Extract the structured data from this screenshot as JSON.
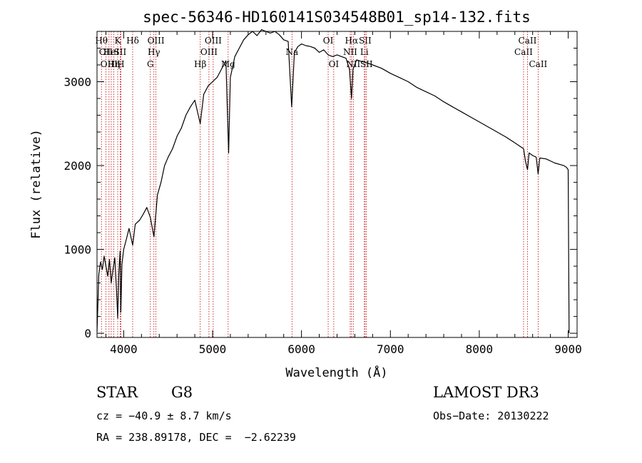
{
  "chart_data": {
    "type": "line",
    "title": "spec-56346-HD160141S034548B01_sp14-132.fits",
    "xlabel": "Wavelength (Å)",
    "ylabel": "Flux (relative)",
    "xlim": [
      3700,
      9100
    ],
    "ylim": [
      -50,
      3600
    ],
    "x_ticks": [
      {
        "value": 4000,
        "label": "4000"
      },
      {
        "value": 5000,
        "label": "5000"
      },
      {
        "value": 6000,
        "label": "6000"
      },
      {
        "value": 7000,
        "label": "7000"
      },
      {
        "value": 8000,
        "label": "8000"
      },
      {
        "value": 9000,
        "label": "9000"
      }
    ],
    "y_ticks": [
      {
        "value": 0,
        "label": "0"
      },
      {
        "value": 1000,
        "label": "1000"
      },
      {
        "value": 2000,
        "label": "2000"
      },
      {
        "value": 3000,
        "label": "3000"
      }
    ],
    "series": [
      {
        "name": "spectrum",
        "points": [
          [
            3700,
            20
          ],
          [
            3720,
            700
          ],
          [
            3740,
            850
          ],
          [
            3760,
            760
          ],
          [
            3780,
            920
          ],
          [
            3800,
            800
          ],
          [
            3820,
            680
          ],
          [
            3840,
            880
          ],
          [
            3860,
            600
          ],
          [
            3880,
            760
          ],
          [
            3900,
            900
          ],
          [
            3920,
            500
          ],
          [
            3933,
            180
          ],
          [
            3945,
            700
          ],
          [
            3960,
            980
          ],
          [
            3968,
            250
          ],
          [
            3980,
            820
          ],
          [
            4000,
            1000
          ],
          [
            4030,
            1120
          ],
          [
            4060,
            1250
          ],
          [
            4101,
            1050
          ],
          [
            4130,
            1300
          ],
          [
            4180,
            1350
          ],
          [
            4220,
            1420
          ],
          [
            4260,
            1500
          ],
          [
            4300,
            1380
          ],
          [
            4340,
            1150
          ],
          [
            4380,
            1650
          ],
          [
            4420,
            1800
          ],
          [
            4460,
            2000
          ],
          [
            4500,
            2100
          ],
          [
            4550,
            2200
          ],
          [
            4600,
            2350
          ],
          [
            4650,
            2450
          ],
          [
            4700,
            2600
          ],
          [
            4750,
            2700
          ],
          [
            4800,
            2780
          ],
          [
            4861,
            2500
          ],
          [
            4900,
            2850
          ],
          [
            4950,
            2950
          ],
          [
            5000,
            3000
          ],
          [
            5050,
            3050
          ],
          [
            5100,
            3150
          ],
          [
            5150,
            3250
          ],
          [
            5180,
            2150
          ],
          [
            5200,
            3050
          ],
          [
            5250,
            3300
          ],
          [
            5300,
            3400
          ],
          [
            5350,
            3500
          ],
          [
            5400,
            3560
          ],
          [
            5450,
            3600
          ],
          [
            5500,
            3550
          ],
          [
            5550,
            3620
          ],
          [
            5600,
            3600
          ],
          [
            5650,
            3580
          ],
          [
            5700,
            3600
          ],
          [
            5750,
            3560
          ],
          [
            5800,
            3500
          ],
          [
            5850,
            3480
          ],
          [
            5890,
            2700
          ],
          [
            5920,
            3350
          ],
          [
            5960,
            3420
          ],
          [
            6000,
            3450
          ],
          [
            6050,
            3430
          ],
          [
            6100,
            3420
          ],
          [
            6150,
            3400
          ],
          [
            6200,
            3350
          ],
          [
            6250,
            3380
          ],
          [
            6300,
            3320
          ],
          [
            6350,
            3300
          ],
          [
            6400,
            3320
          ],
          [
            6450,
            3300
          ],
          [
            6500,
            3280
          ],
          [
            6540,
            3150
          ],
          [
            6563,
            2800
          ],
          [
            6580,
            3150
          ],
          [
            6620,
            3260
          ],
          [
            6680,
            3240
          ],
          [
            6750,
            3220
          ],
          [
            6800,
            3200
          ],
          [
            6900,
            3160
          ],
          [
            7000,
            3100
          ],
          [
            7100,
            3050
          ],
          [
            7200,
            3000
          ],
          [
            7300,
            2930
          ],
          [
            7400,
            2880
          ],
          [
            7500,
            2830
          ],
          [
            7600,
            2760
          ],
          [
            7700,
            2700
          ],
          [
            7800,
            2640
          ],
          [
            7900,
            2580
          ],
          [
            8000,
            2520
          ],
          [
            8100,
            2460
          ],
          [
            8200,
            2400
          ],
          [
            8300,
            2340
          ],
          [
            8400,
            2270
          ],
          [
            8498,
            2200
          ],
          [
            8520,
            2050
          ],
          [
            8542,
            1950
          ],
          [
            8560,
            2150
          ],
          [
            8600,
            2120
          ],
          [
            8640,
            2100
          ],
          [
            8662,
            1900
          ],
          [
            8680,
            2090
          ],
          [
            8750,
            2080
          ],
          [
            8850,
            2030
          ],
          [
            8950,
            2000
          ],
          [
            8980,
            1980
          ],
          [
            9000,
            1950
          ],
          [
            9005,
            900
          ],
          [
            9010,
            0
          ]
        ]
      }
    ],
    "line_markers": [
      {
        "wavelength": 3750,
        "row": 0,
        "label": "Hθ"
      },
      {
        "wavelength": 3800,
        "row": 1,
        "label": "OII"
      },
      {
        "wavelength": 3835,
        "row": 2,
        "label": "OIII"
      },
      {
        "wavelength": 3860,
        "row": 1,
        "label": "HeI"
      },
      {
        "wavelength": 3889,
        "row": 2,
        "label": "Hη"
      },
      {
        "wavelength": 3933,
        "row": 0,
        "label": "K"
      },
      {
        "wavelength": 3960,
        "row": 1,
        "label": "SII"
      },
      {
        "wavelength": 3968,
        "row": 2,
        "label": "H"
      },
      {
        "wavelength": 4101,
        "row": 0,
        "label": "Hδ"
      },
      {
        "wavelength": 4300,
        "row": 2,
        "label": "G"
      },
      {
        "wavelength": 4340,
        "row": 1,
        "label": "Hγ"
      },
      {
        "wavelength": 4363,
        "row": 0,
        "label": "OIII"
      },
      {
        "wavelength": 4861,
        "row": 2,
        "label": "Hβ"
      },
      {
        "wavelength": 4959,
        "row": 1,
        "label": "OIII"
      },
      {
        "wavelength": 5007,
        "row": 0,
        "label": "OIII"
      },
      {
        "wavelength": 5175,
        "row": 2,
        "label": "Mg"
      },
      {
        "wavelength": 5893,
        "row": 1,
        "label": "Na"
      },
      {
        "wavelength": 6300,
        "row": 0,
        "label": "OI"
      },
      {
        "wavelength": 6363,
        "row": 2,
        "label": "OI"
      },
      {
        "wavelength": 6548,
        "row": 1,
        "label": "NII"
      },
      {
        "wavelength": 6563,
        "row": 0,
        "label": "Hα"
      },
      {
        "wavelength": 6583,
        "row": 2,
        "label": "NII"
      },
      {
        "wavelength": 6707,
        "row": 1,
        "label": "Li"
      },
      {
        "wavelength": 6716,
        "row": 0,
        "label": "SII"
      },
      {
        "wavelength": 6731,
        "row": 2,
        "label": "SII"
      },
      {
        "wavelength": 8498,
        "row": 1,
        "label": "CaII"
      },
      {
        "wavelength": 8542,
        "row": 0,
        "label": "CaII"
      },
      {
        "wavelength": 8662,
        "row": 2,
        "label": "CaII"
      }
    ]
  },
  "info": {
    "object_type": "STAR",
    "subclass": "G8",
    "survey": "LAMOST DR3",
    "cz": "cz = −40.9 ± 8.7 km/s",
    "obs_date": "Obs−Date: 20130222",
    "coords": "RA = 238.89178, DEC =  −2.62239"
  }
}
